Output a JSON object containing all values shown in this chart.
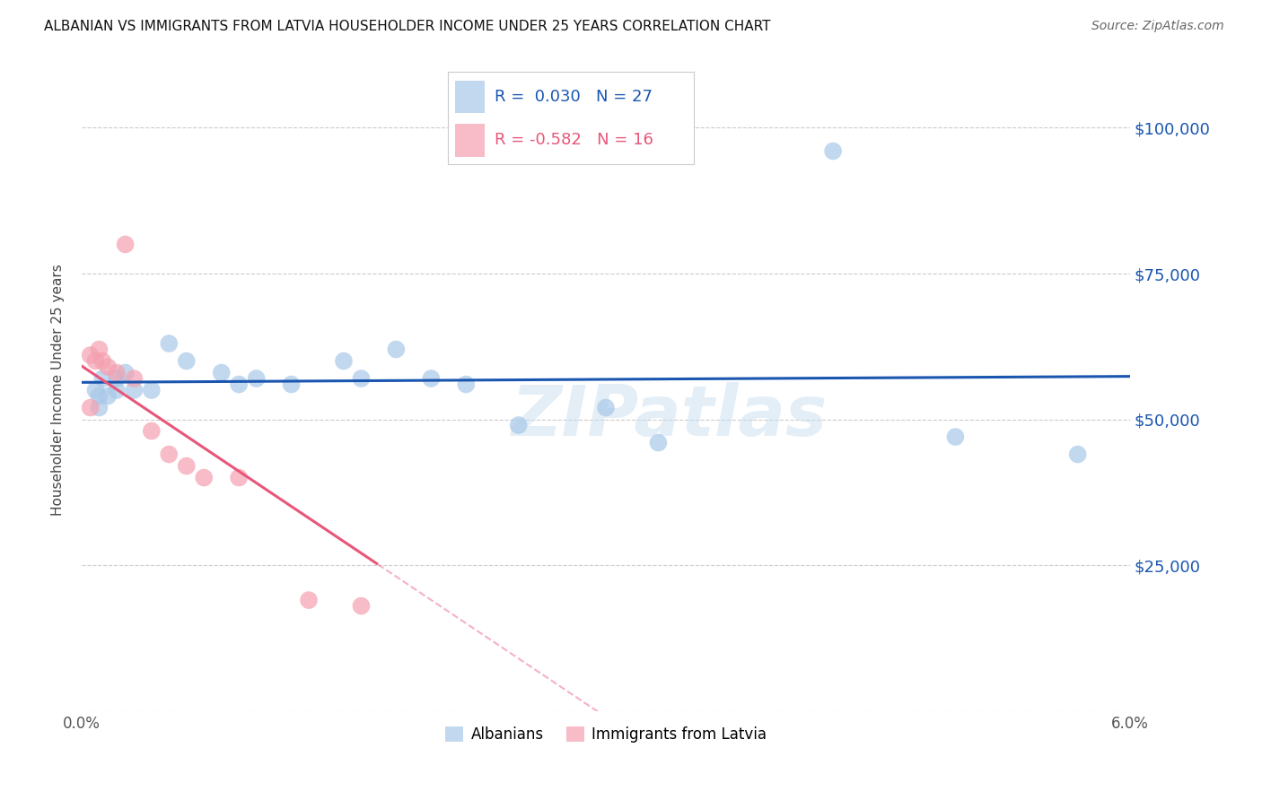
{
  "title": "ALBANIAN VS IMMIGRANTS FROM LATVIA HOUSEHOLDER INCOME UNDER 25 YEARS CORRELATION CHART",
  "source": "Source: ZipAtlas.com",
  "ylabel": "Householder Income Under 25 years",
  "legend_label1": "Albanians",
  "legend_label2": "Immigrants from Latvia",
  "r1": 0.03,
  "n1": 27,
  "r2": -0.582,
  "n2": 16,
  "blue_color": "#a8c8e8",
  "pink_color": "#f4a0b0",
  "blue_line_color": "#1a56b0",
  "pink_line_color": "#e8567a",
  "blue_scatter": [
    [
      0.0008,
      55000
    ],
    [
      0.001,
      54000
    ],
    [
      0.001,
      52000
    ],
    [
      0.0012,
      57000
    ],
    [
      0.0015,
      54000
    ],
    [
      0.002,
      57000
    ],
    [
      0.002,
      55000
    ],
    [
      0.0025,
      58000
    ],
    [
      0.003,
      55000
    ],
    [
      0.004,
      55000
    ],
    [
      0.005,
      63000
    ],
    [
      0.006,
      60000
    ],
    [
      0.008,
      58000
    ],
    [
      0.009,
      56000
    ],
    [
      0.01,
      57000
    ],
    [
      0.012,
      56000
    ],
    [
      0.015,
      60000
    ],
    [
      0.016,
      57000
    ],
    [
      0.018,
      62000
    ],
    [
      0.02,
      57000
    ],
    [
      0.022,
      56000
    ],
    [
      0.025,
      49000
    ],
    [
      0.03,
      52000
    ],
    [
      0.033,
      46000
    ],
    [
      0.043,
      96000
    ],
    [
      0.05,
      47000
    ],
    [
      0.057,
      44000
    ]
  ],
  "pink_scatter": [
    [
      0.0005,
      61000
    ],
    [
      0.0008,
      60000
    ],
    [
      0.001,
      62000
    ],
    [
      0.0012,
      60000
    ],
    [
      0.0015,
      59000
    ],
    [
      0.002,
      58000
    ],
    [
      0.0025,
      80000
    ],
    [
      0.003,
      57000
    ],
    [
      0.004,
      48000
    ],
    [
      0.005,
      44000
    ],
    [
      0.006,
      42000
    ],
    [
      0.007,
      40000
    ],
    [
      0.009,
      40000
    ],
    [
      0.013,
      19000
    ],
    [
      0.016,
      18000
    ],
    [
      0.0005,
      52000
    ]
  ],
  "xlim": [
    0.0,
    0.06
  ],
  "ylim": [
    0,
    110000
  ],
  "yticks": [
    0,
    25000,
    50000,
    75000,
    100000
  ],
  "ytick_labels": [
    "",
    "$25,000",
    "$50,000",
    "$75,000",
    "$100,000"
  ],
  "xtick_labels": [
    "0.0%",
    "",
    "",
    "",
    "",
    "",
    "6.0%"
  ],
  "xticks": [
    0.0,
    0.01,
    0.02,
    0.03,
    0.04,
    0.05,
    0.06
  ],
  "background": "#ffffff",
  "watermark": "ZIPatlas",
  "marker_size": 200
}
